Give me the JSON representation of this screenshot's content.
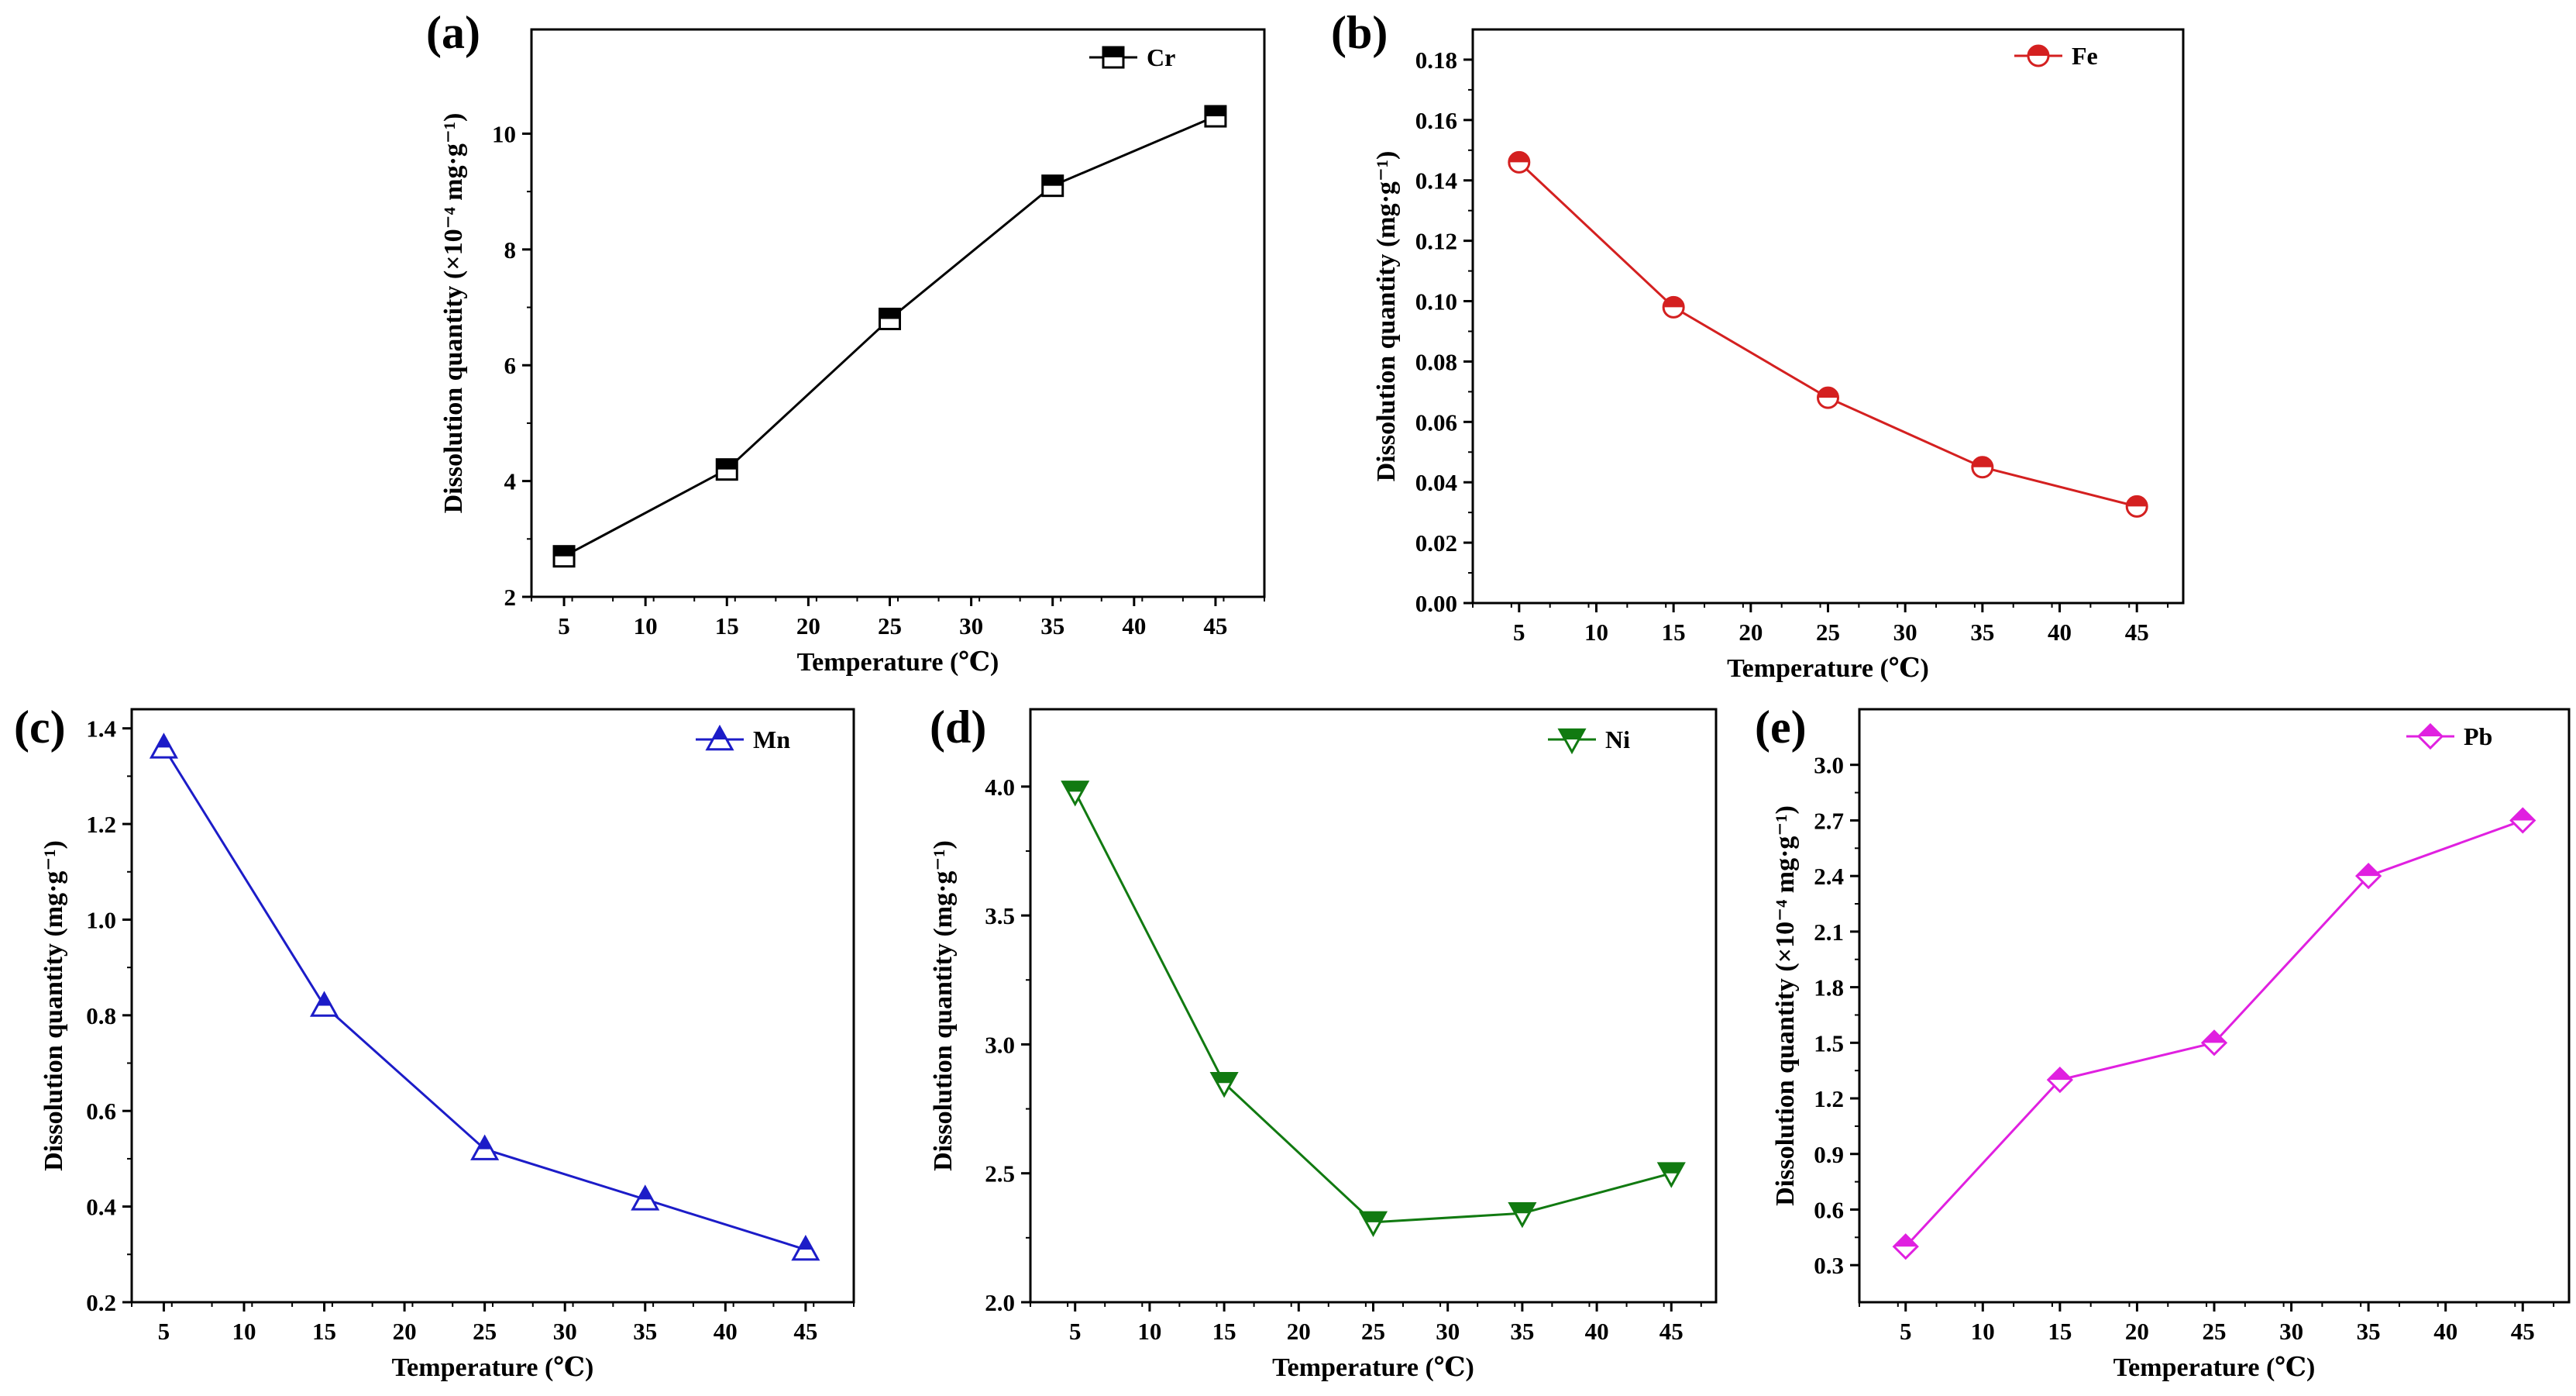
{
  "chart_data": [
    {
      "id": "a",
      "panel_label": "(a)",
      "type": "line",
      "xlabel": "Temperature (℃)",
      "ylabel": "Dissolution quantity (×10⁻⁴ mg·g⁻¹)",
      "x": [
        5,
        15,
        25,
        35,
        45
      ],
      "xticks": [
        5,
        10,
        15,
        20,
        25,
        30,
        35,
        40,
        45
      ],
      "xlim": [
        3,
        48
      ],
      "ylim": [
        2,
        11.8
      ],
      "yticks": [
        2,
        4,
        6,
        8,
        10
      ],
      "ytick_labels": [
        "2",
        "4",
        "6",
        "8",
        "10"
      ],
      "series": [
        {
          "name": "Cr",
          "values": [
            2.7,
            4.2,
            6.8,
            9.1,
            10.3
          ],
          "color": "#000000",
          "marker": "square"
        }
      ],
      "legend_position": "top-right"
    },
    {
      "id": "b",
      "panel_label": "(b)",
      "type": "line",
      "xlabel": "Temperature (℃)",
      "ylabel": "Dissolution quantity (mg·g⁻¹)",
      "x": [
        5,
        15,
        25,
        35,
        45
      ],
      "xticks": [
        5,
        10,
        15,
        20,
        25,
        30,
        35,
        40,
        45
      ],
      "xlim": [
        2,
        48
      ],
      "ylim": [
        0,
        0.19
      ],
      "yticks": [
        0,
        0.02,
        0.04,
        0.06,
        0.08,
        0.1,
        0.12,
        0.14,
        0.16,
        0.18
      ],
      "ytick_labels": [
        "0.00",
        "0.02",
        "0.04",
        "0.06",
        "0.08",
        "0.10",
        "0.12",
        "0.14",
        "0.16",
        "0.18"
      ],
      "series": [
        {
          "name": "Fe",
          "values": [
            0.146,
            0.098,
            0.068,
            0.045,
            0.032
          ],
          "color": "#d42020",
          "marker": "circle"
        }
      ],
      "legend_position": "top-right"
    },
    {
      "id": "c",
      "panel_label": "(c)",
      "type": "line",
      "xlabel": "Temperature (℃)",
      "ylabel": "Dissolution quantity (mg·g⁻¹)",
      "x": [
        5,
        15,
        25,
        35,
        45
      ],
      "xticks": [
        5,
        10,
        15,
        20,
        25,
        30,
        35,
        40,
        45
      ],
      "xlim": [
        3,
        48
      ],
      "ylim": [
        0.2,
        1.44
      ],
      "yticks": [
        0.2,
        0.4,
        0.6,
        0.8,
        1.0,
        1.2,
        1.4
      ],
      "ytick_labels": [
        "0.2",
        "0.4",
        "0.6",
        "0.8",
        "1.0",
        "1.2",
        "1.4"
      ],
      "series": [
        {
          "name": "Mn",
          "values": [
            1.36,
            0.82,
            0.52,
            0.415,
            0.31
          ],
          "color": "#1c1cc8",
          "marker": "triangle-up"
        }
      ],
      "legend_position": "top-right"
    },
    {
      "id": "d",
      "panel_label": "(d)",
      "type": "line",
      "xlabel": "Temperature (℃)",
      "ylabel": "Dissolution quantity (mg·g⁻¹)",
      "x": [
        5,
        15,
        25,
        35,
        45
      ],
      "xticks": [
        5,
        10,
        15,
        20,
        25,
        30,
        35,
        40,
        45
      ],
      "xlim": [
        2,
        48
      ],
      "ylim": [
        2.0,
        4.3
      ],
      "yticks": [
        2.0,
        2.5,
        3.0,
        3.5,
        4.0
      ],
      "ytick_labels": [
        "2.0",
        "2.5",
        "3.0",
        "3.5",
        "4.0"
      ],
      "series": [
        {
          "name": "Ni",
          "values": [
            3.98,
            2.85,
            2.31,
            2.345,
            2.5
          ],
          "color": "#117a11",
          "marker": "triangle-down"
        }
      ],
      "legend_position": "top-right"
    },
    {
      "id": "e",
      "panel_label": "(e)",
      "type": "line",
      "xlabel": "Temperature (℃)",
      "ylabel": "Dissolution quantity (×10⁻⁴ mg·g⁻¹)",
      "x": [
        5,
        15,
        25,
        35,
        45
      ],
      "xticks": [
        5,
        10,
        15,
        20,
        25,
        30,
        35,
        40,
        45
      ],
      "xlim": [
        2,
        48
      ],
      "ylim": [
        0.1,
        3.3
      ],
      "yticks": [
        0.3,
        0.6,
        0.9,
        1.2,
        1.5,
        1.8,
        2.1,
        2.4,
        2.7,
        3.0
      ],
      "ytick_labels": [
        "0.3",
        "0.6",
        "0.9",
        "1.2",
        "1.5",
        "1.8",
        "2.1",
        "2.4",
        "2.7",
        "3.0"
      ],
      "series": [
        {
          "name": "Pb",
          "values": [
            0.4,
            1.3,
            1.5,
            2.4,
            2.7
          ],
          "color": "#e020e0",
          "marker": "diamond"
        }
      ],
      "legend_position": "top-right"
    }
  ]
}
